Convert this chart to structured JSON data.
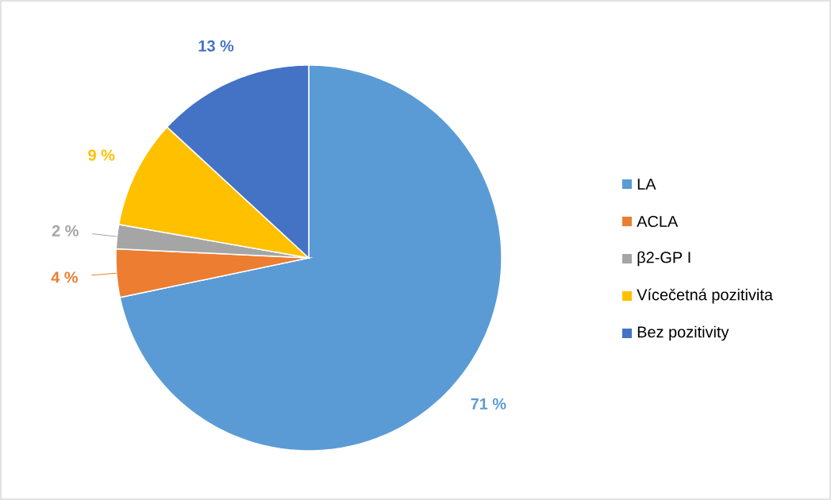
{
  "chart_data": {
    "type": "pie",
    "categories": [
      "LA",
      "ACLA",
      "β2-GP I",
      "Vícečetná pozitivita",
      "Bez pozitivity"
    ],
    "values": [
      71,
      4,
      2,
      9,
      13
    ],
    "value_labels": [
      "71 %",
      "4 %",
      "2 %",
      "9 %",
      "13 %"
    ],
    "colors": [
      "#5b9bd5",
      "#ed7d31",
      "#a5a5a5",
      "#ffc000",
      "#4472c4"
    ],
    "legend": "right"
  }
}
